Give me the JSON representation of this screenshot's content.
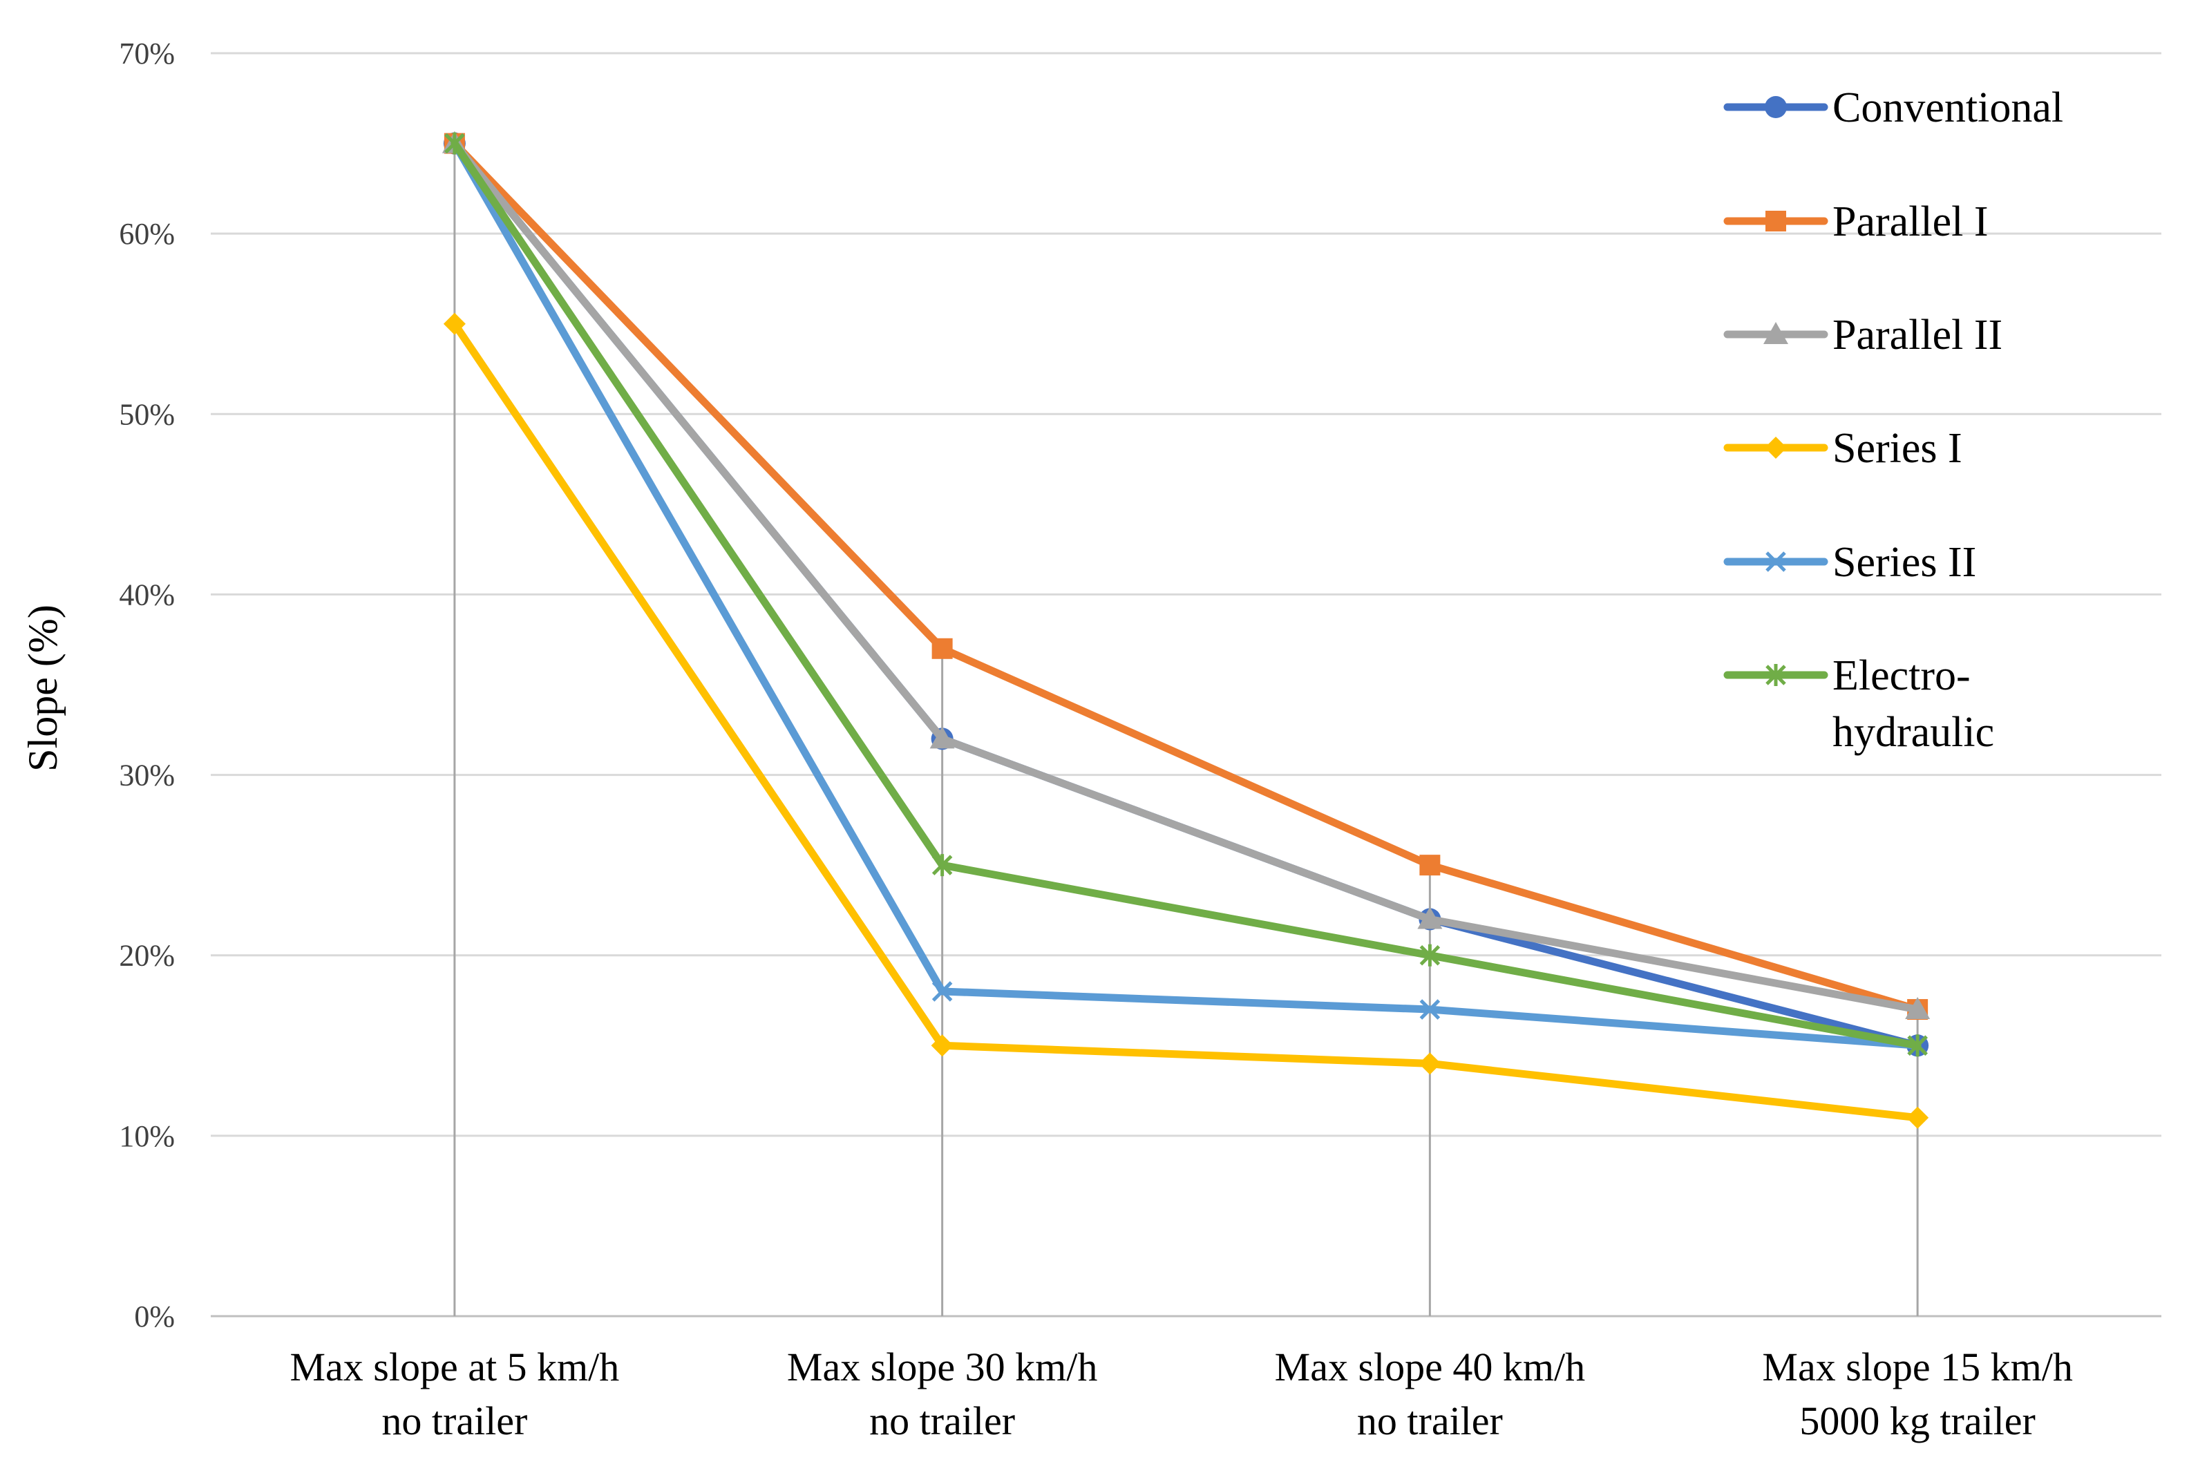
{
  "chart_data": {
    "type": "line",
    "title": "",
    "xlabel": "",
    "ylabel": "Slope (%)",
    "ylim": [
      0,
      70
    ],
    "yticks": [
      "0%",
      "10%",
      "20%",
      "30%",
      "40%",
      "50%",
      "60%",
      "70%"
    ],
    "grid": true,
    "legend_position": "top-right",
    "categories": [
      [
        "Max slope at 5 km/h",
        "no trailer"
      ],
      [
        "Max slope 30 km/h",
        "no trailer"
      ],
      [
        "Max slope 40 km/h",
        "no trailer"
      ],
      [
        "Max slope 15 km/h",
        "5000 kg trailer"
      ]
    ],
    "series": [
      {
        "name": "Conventional",
        "legend_lines": [
          "Conventional"
        ],
        "color": "#4472C4",
        "marker": "circle",
        "values": [
          65,
          32,
          22,
          15
        ]
      },
      {
        "name": "Parallel I",
        "legend_lines": [
          "Parallel I"
        ],
        "color": "#ED7D31",
        "marker": "square",
        "values": [
          65,
          37,
          25,
          17
        ]
      },
      {
        "name": "Parallel II",
        "legend_lines": [
          "Parallel II"
        ],
        "color": "#A5A5A5",
        "marker": "triangle",
        "values": [
          65,
          32,
          22,
          17
        ]
      },
      {
        "name": "Series I",
        "legend_lines": [
          "Series I"
        ],
        "color": "#FFC000",
        "marker": "diamond",
        "values": [
          55,
          15,
          14,
          11
        ]
      },
      {
        "name": "Series II",
        "legend_lines": [
          "Series II"
        ],
        "color": "#5B9BD5",
        "marker": "x",
        "values": [
          65,
          18,
          17,
          15
        ]
      },
      {
        "name": "Electro-hydraulic",
        "legend_lines": [
          "Electro-",
          "hydraulic"
        ],
        "color": "#70AD47",
        "marker": "star",
        "values": [
          65,
          25,
          20,
          15
        ]
      }
    ]
  }
}
